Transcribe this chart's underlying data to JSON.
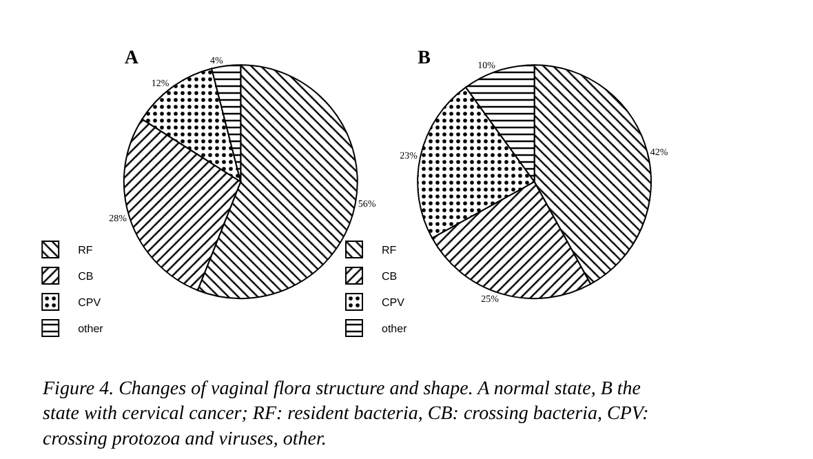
{
  "chart_data": [
    {
      "type": "pie",
      "title": "A",
      "categories": [
        "RF",
        "CB",
        "CPV",
        "other"
      ],
      "values": [
        56,
        28,
        12,
        4
      ],
      "colors": [
        "#000000",
        "#000000",
        "#000000",
        "#000000"
      ],
      "value_labels": [
        "56%",
        "28%",
        "12%",
        "4%"
      ],
      "legend": "bottom left",
      "annotations": [
        "Figure 4. Changes of vaginal flora structure and shape. A normal state, B the state with cervical cancer; RF: resident bacteria, CB: crossing bacteria, CPV: crossing protozoa and viruses, other."
      ]
    },
    {
      "type": "pie",
      "title": "B",
      "categories": [
        "RF",
        "CB",
        "CPV",
        "other"
      ],
      "values": [
        42,
        25,
        23,
        10
      ],
      "colors": [
        "#000000",
        "#000000",
        "#000000",
        "#000000"
      ],
      "value_labels": [
        "42%",
        "25%",
        "23%",
        "10%"
      ],
      "legend": "bottom left"
    }
  ]
}
